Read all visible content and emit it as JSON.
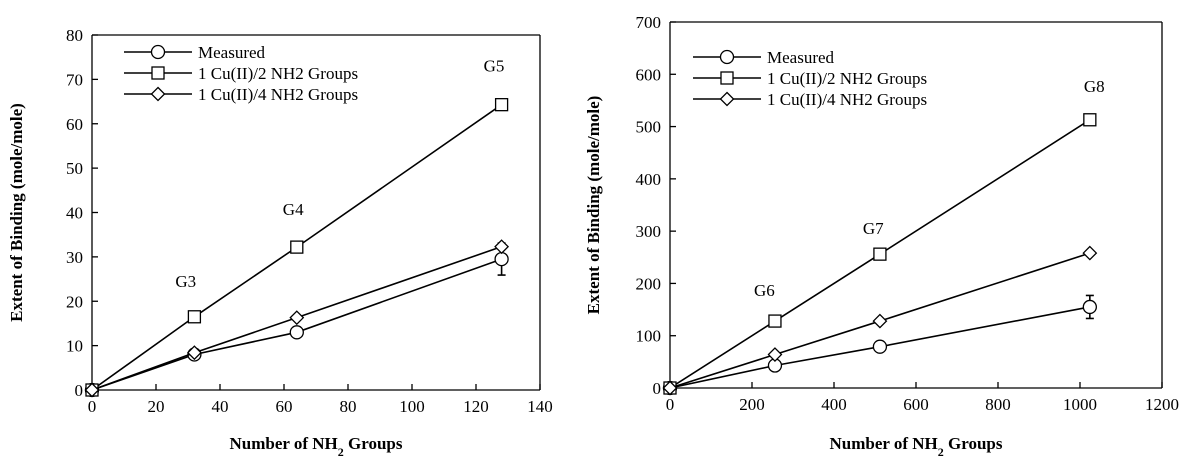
{
  "chart_data": [
    {
      "type": "line",
      "xlabel": "Number of NH₂ Groups",
      "ylabel": "Extent of Binding (mole/mole)",
      "xlim": [
        0,
        140
      ],
      "ylim": [
        0,
        80
      ],
      "xticks": [
        0,
        20,
        40,
        60,
        80,
        100,
        120,
        140
      ],
      "yticks": [
        0,
        10,
        20,
        30,
        40,
        50,
        60,
        70,
        80
      ],
      "legend_position": "top-left",
      "series": [
        {
          "name": "Measured",
          "marker": "circle",
          "points": [
            {
              "x": 0,
              "y": 0
            },
            {
              "x": 32,
              "y": 8
            },
            {
              "x": 64,
              "y": 13
            },
            {
              "x": 128,
              "y": 29.5
            }
          ],
          "errors": [
            0,
            0.6,
            1.1,
            3.6
          ]
        },
        {
          "name": "1 Cu(II)/2 NH2 Groups",
          "marker": "square",
          "points": [
            {
              "x": 0,
              "y": 0
            },
            {
              "x": 32,
              "y": 16.5
            },
            {
              "x": 64,
              "y": 32.2
            },
            {
              "x": 128,
              "y": 64.3
            }
          ]
        },
        {
          "name": "1 Cu(II)/4 NH2 Groups",
          "marker": "diamond",
          "points": [
            {
              "x": 0,
              "y": 0
            },
            {
              "x": 32,
              "y": 8.4
            },
            {
              "x": 64,
              "y": 16.3
            },
            {
              "x": 128,
              "y": 32.3
            }
          ]
        }
      ],
      "annotations": [
        {
          "text": "G3",
          "x": 32,
          "y": 16.5
        },
        {
          "text": "G4",
          "x": 64,
          "y": 32.2
        },
        {
          "text": "G5",
          "x": 128,
          "y": 64.3
        }
      ]
    },
    {
      "type": "line",
      "xlabel": "Number of NH₂ Groups",
      "ylabel": "Extent of Binding (mole/mole)",
      "xlim": [
        0,
        1200
      ],
      "ylim": [
        0,
        700
      ],
      "xticks": [
        0,
        200,
        400,
        600,
        800,
        1000,
        1200
      ],
      "yticks": [
        0,
        100,
        200,
        300,
        400,
        500,
        600,
        700
      ],
      "legend_position": "top-left",
      "series": [
        {
          "name": "Measured",
          "marker": "circle",
          "points": [
            {
              "x": 0,
              "y": 0
            },
            {
              "x": 256,
              "y": 43
            },
            {
              "x": 512,
              "y": 79
            },
            {
              "x": 1024,
              "y": 155
            }
          ],
          "errors": [
            0,
            6,
            6,
            22
          ]
        },
        {
          "name": "1 Cu(II)/2 NH2 Groups",
          "marker": "square",
          "points": [
            {
              "x": 0,
              "y": 0
            },
            {
              "x": 256,
              "y": 128
            },
            {
              "x": 512,
              "y": 256
            },
            {
              "x": 1024,
              "y": 513
            }
          ]
        },
        {
          "name": "1 Cu(II)/4 NH2 Groups",
          "marker": "diamond",
          "points": [
            {
              "x": 0,
              "y": 0
            },
            {
              "x": 256,
              "y": 64
            },
            {
              "x": 512,
              "y": 128
            },
            {
              "x": 1024,
              "y": 258
            }
          ]
        }
      ],
      "annotations": [
        {
          "text": "G6",
          "x": 256,
          "y": 128
        },
        {
          "text": "G7",
          "x": 512,
          "y": 256
        },
        {
          "text": "G8",
          "x": 1024,
          "y": 513
        }
      ]
    }
  ]
}
